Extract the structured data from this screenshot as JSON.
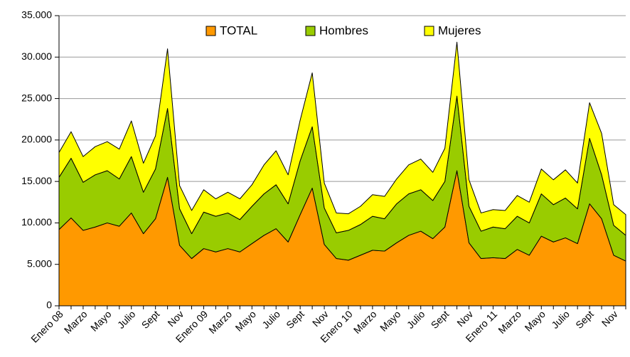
{
  "chart_data": {
    "type": "stacked-area",
    "categories": [
      "Enero 08",
      null,
      "Marzo",
      null,
      "Mayo",
      null,
      "Julio",
      null,
      "Sept",
      null,
      "Nov",
      null,
      "Enero 09",
      null,
      "Marzo",
      null,
      "Mayo",
      null,
      "Julio",
      null,
      "Sept",
      null,
      "Nov",
      null,
      "Enero 10",
      null,
      "Marzo",
      null,
      "Mayo",
      null,
      "Julio",
      null,
      "Sept",
      null,
      "Nov",
      null,
      "Enero 11",
      null,
      "Marzo",
      null,
      "Mayo",
      null,
      "Julio",
      null,
      "Sept",
      null,
      "Nov",
      null
    ],
    "series": [
      {
        "name": "TOTAL",
        "color": "#ff9900",
        "values": [
          9200,
          10600,
          9100,
          9500,
          10000,
          9600,
          11200,
          8700,
          10500,
          15500,
          7300,
          5700,
          6900,
          6500,
          6900,
          6500,
          7500,
          8500,
          9300,
          7700,
          11000,
          14200,
          7400,
          5700,
          5500,
          6100,
          6700,
          6600,
          7600,
          8500,
          9000,
          8100,
          9500,
          16300,
          7600,
          5700,
          5800,
          5700,
          6800,
          6100,
          8400,
          7700,
          8200,
          7500,
          12300,
          10500,
          6100,
          5400
        ]
      },
      {
        "name": "Hombres",
        "color": "#99cc00",
        "values": [
          6300,
          7200,
          5800,
          6300,
          6300,
          5700,
          6800,
          5000,
          6000,
          8300,
          4400,
          3000,
          4400,
          4300,
          4300,
          3900,
          4500,
          5000,
          5300,
          4600,
          6500,
          7400,
          4400,
          3100,
          3600,
          3700,
          4100,
          3900,
          4700,
          5000,
          5000,
          4600,
          5500,
          9000,
          4400,
          3300,
          3700,
          3600,
          4000,
          3900,
          5100,
          4500,
          4800,
          4200,
          7900,
          5300,
          3600,
          3100
        ]
      },
      {
        "name": "Mujeres",
        "color": "#ffff00",
        "values": [
          3000,
          3200,
          3100,
          3400,
          3500,
          3600,
          4300,
          3500,
          4000,
          7200,
          2800,
          2800,
          2700,
          2100,
          2500,
          2500,
          2600,
          3500,
          4100,
          3500,
          4900,
          6500,
          3000,
          2400,
          2000,
          2200,
          2600,
          2700,
          3000,
          3500,
          3700,
          3400,
          4000,
          6500,
          3200,
          2200,
          2100,
          2200,
          2500,
          2500,
          3000,
          3000,
          3400,
          3100,
          4300,
          5000,
          2500,
          2500
        ]
      }
    ],
    "ylim": [
      0,
      35000
    ],
    "yticks": [
      0,
      {
        "value": 5000,
        "label": "5.000"
      },
      {
        "value": 10000,
        "label": "10.000"
      },
      {
        "value": 15000,
        "label": "15.000"
      },
      {
        "value": 20000,
        "label": "20.000"
      },
      {
        "value": 25000,
        "label": "25.000"
      },
      {
        "value": 30000,
        "label": "30.000"
      },
      {
        "value": 35000,
        "label": "35.000"
      }
    ],
    "grid": true,
    "legend": "top"
  }
}
